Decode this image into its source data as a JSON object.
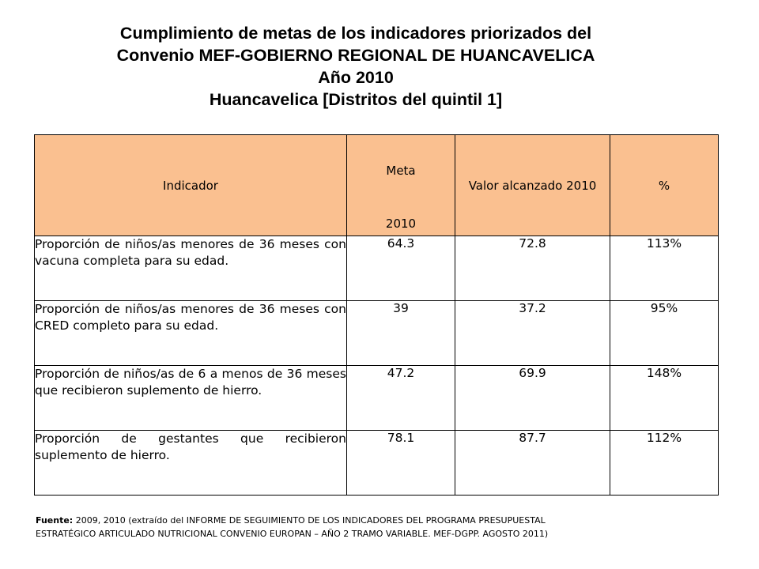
{
  "title": {
    "line1": "Cumplimiento de metas de los indicadores priorizados del",
    "line2": "Convenio MEF-GOBIERNO REGIONAL DE HUANCAVELICA",
    "line3": "Año 2010",
    "line4": "Huancavelica [Distritos del quintil 1]"
  },
  "table": {
    "headers": {
      "indicador": "Indicador",
      "meta": "Meta",
      "meta_year": "2010",
      "valor": "Valor alcanzado 2010",
      "pct": "%"
    },
    "rows": [
      {
        "indicador": "Proporción de niños/as menores de 36 meses con vacuna completa para su edad.",
        "meta": "64.3",
        "valor": "72.8",
        "pct": "113%"
      },
      {
        "indicador": "Proporción de niños/as menores de 36 meses con CRED completo para su edad.",
        "meta": "39",
        "valor": "37.2",
        "pct": "95%"
      },
      {
        "indicador": "Proporción de niños/as de 6 a menos de 36 meses que recibieron suplemento de hierro.",
        "meta": "47.2",
        "valor": "69.9",
        "pct": "148%"
      },
      {
        "indicador": "Proporción de gestantes que recibieron suplemento de hierro.",
        "meta": "78.1",
        "valor": "87.7",
        "pct": "112%"
      }
    ]
  },
  "footer": {
    "label": "Fuente:",
    "text_line1": " 2009, 2010 (extraído del INFORME DE SEGUIMIENTO DE LOS INDICADORES DEL PROGRAMA PRESUPUESTAL",
    "text_line2": "ESTRATÉGICO ARTICULADO NUTRICIONAL CONVENIO EUROPAN – AÑO 2 TRAMO VARIABLE. MEF-DGPP. AGOSTO 2011)"
  },
  "colors": {
    "header_fill": "#fac090",
    "border": "#000000"
  }
}
